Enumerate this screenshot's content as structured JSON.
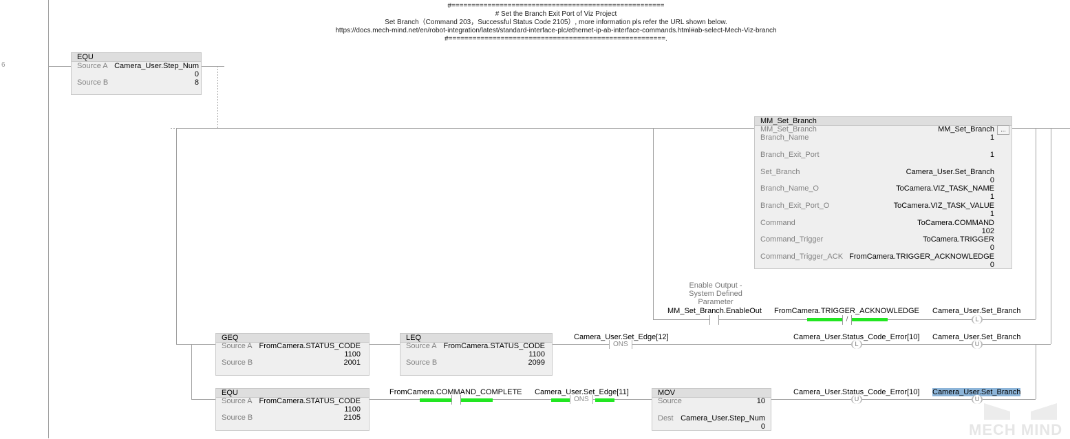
{
  "rung_number": "6",
  "comment": {
    "rule_top": "#=====================================================",
    "line1": "#  Set the Branch Exit Port of Viz Project",
    "line2": "Set Branch（Command 203，Successful Status Code 2105）, more information pls refer the URL shown below.",
    "line3": "https://docs.mech-mind.net/en/robot-integration/latest/standard-interface-plc/ethernet-ip-ab-interface-commands.html#ab-select-Mech-Viz-branch",
    "rule_bottom": "#======================================================."
  },
  "equ_step": {
    "type": "EQU",
    "source_a_label": "Source A",
    "source_a": "Camera_User.Step_Num",
    "source_a_value": "0",
    "source_b_label": "Source B",
    "source_b_value": "8"
  },
  "aoi": {
    "title": "MM_Set_Branch",
    "instance_label": "MM_Set_Branch",
    "instance": "MM_Set_Branch",
    "more": "...",
    "params": [
      {
        "name": "Branch_Name",
        "tag": "",
        "value": "1"
      },
      {
        "name": "Branch_Exit_Port",
        "tag": "",
        "value": "1"
      },
      {
        "name": "Set_Branch",
        "tag": "Camera_User.Set_Branch",
        "value": "0"
      },
      {
        "name": "Branch_Name_O",
        "tag": "ToCamera.VIZ_TASK_NAME",
        "value": "1"
      },
      {
        "name": "Branch_Exit_Port_O",
        "tag": "ToCamera.VIZ_TASK_VALUE",
        "value": "1"
      },
      {
        "name": "Command",
        "tag": "ToCamera.COMMAND",
        "value": "102"
      },
      {
        "name": "Command_Trigger",
        "tag": "ToCamera.TRIGGER",
        "value": "0"
      },
      {
        "name": "Command_Trigger_ACK",
        "tag": "FromCamera.TRIGGER_ACKNOWLEDGE",
        "value": "0"
      }
    ]
  },
  "enable_rung": {
    "desc1": "Enable Output -",
    "desc2": "System Defined",
    "desc3": "Parameter",
    "contact_tag": "MM_Set_Branch.EnableOut",
    "nc_tag": "FromCamera.TRIGGER_ACKNOWLEDGE",
    "nc_symbol": "/",
    "coil_tag": "Camera_User.Set_Branch",
    "coil": "L"
  },
  "geq": {
    "type": "GEQ",
    "source_a_label": "Source A",
    "source_a": "FromCamera.STATUS_CODE",
    "source_a_value": "1100",
    "source_b_label": "Source B",
    "source_b_value": "2001"
  },
  "leq": {
    "type": "LEQ",
    "source_a_label": "Source A",
    "source_a": "FromCamera.STATUS_CODE",
    "source_a_value": "1100",
    "source_b_label": "Source B",
    "source_b_value": "2099"
  },
  "error_rung": {
    "ons_tag": "Camera_User.Set_Edge[12]",
    "ons": "ONS",
    "coil1_tag": "Camera_User.Status_Code_Error[10]",
    "coil1": "L",
    "coil2_tag": "Camera_User.Set_Branch",
    "coil2": "U"
  },
  "equ_status": {
    "type": "EQU",
    "source_a_label": "Source A",
    "source_a": "FromCamera.STATUS_CODE",
    "source_a_value": "1100",
    "source_b_label": "Source B",
    "source_b_value": "2105"
  },
  "success_rung": {
    "contact_tag": "FromCamera.COMMAND_COMPLETE",
    "ons_tag": "Camera_User.Set_Edge[11]",
    "ons": "ONS",
    "coil1_tag": "Camera_User.Status_Code_Error[10]",
    "coil1": "U",
    "coil2_tag": "Camera_User.Set_Branch",
    "coil2": "U"
  },
  "mov": {
    "type": "MOV",
    "source_label": "Source",
    "source_value": "10",
    "dest_label": "Dest",
    "dest": "Camera_User.Step_Num",
    "dest_value": "0"
  },
  "colors": {
    "energized": "#22e622",
    "selection": "#8cb4d8"
  },
  "watermark": "MECH MIND"
}
